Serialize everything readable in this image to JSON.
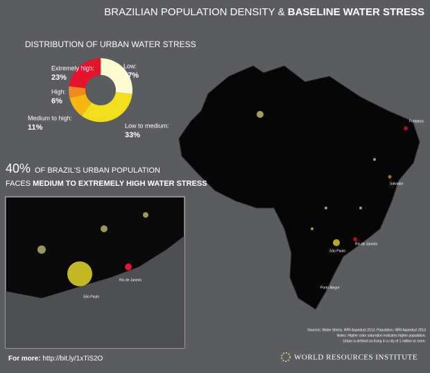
{
  "header": {
    "title_regular": "BRAZILIAN POPULATION DENSITY &",
    "title_bold": "BASELINE WATER STRESS"
  },
  "chart_data": {
    "type": "donut",
    "title": "DISTRIBUTION OF URBAN WATER STRESS",
    "categories": [
      "Low:",
      "Low to medium:",
      "Medium to high:",
      "High:",
      "Extremely high:"
    ],
    "values": [
      27,
      33,
      11,
      6,
      23
    ],
    "value_labels": [
      "27%",
      "33%",
      "11%",
      "6%",
      "23%"
    ],
    "colors": [
      "#fdfbcf",
      "#f1df1e",
      "#f6b612",
      "#ef8a1d",
      "#e5132b"
    ]
  },
  "headline": {
    "figure": "40%",
    "line1": "OF BRAZIL'S URBAN POPULATION",
    "line2_regular": "FACES",
    "line2_bold": "MEDIUM TO EXTREMELY HIGH WATER STRESS"
  },
  "map_labels": [
    "Fortaleza",
    "Salvador",
    "Rio de Janeiro",
    "São Paulo",
    "Porto Alegre"
  ],
  "inset_labels": [
    "Rio de Janeiro",
    "São Paulo"
  ],
  "sources": [
    "Sources: Water Stress, WRI Aqueduct 2013; Population, WRI Aqueduct 2013",
    "Notes: Higher color saturation indicates higher population.",
    "Urban is defined as living in a city of 1 million or more."
  ],
  "footer": {
    "more_label": "For more:",
    "url": "http://bit.ly/1xTiS2O",
    "org": "WORLD RESOURCES INSTITUTE"
  }
}
